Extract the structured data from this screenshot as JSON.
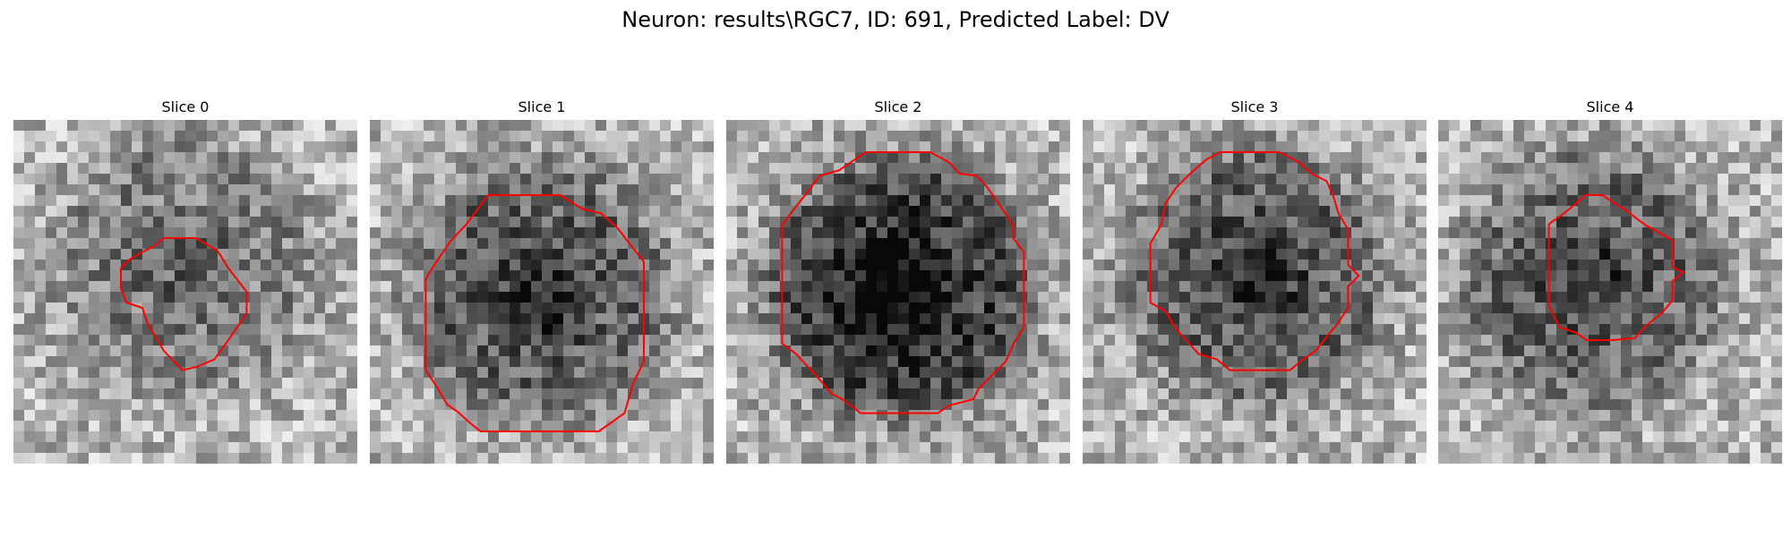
{
  "figure": {
    "title": "Neuron: results\\RGC7, ID: 691, Predicted Label: DV"
  },
  "colors": {
    "contour": "#ff0000",
    "background": "#ffffff"
  },
  "slices": [
    {
      "title": "Slice 0",
      "grid_size": 32,
      "cell_center": [
        15.8,
        13.5
      ],
      "cell_darkness": 0.35,
      "contour": [
        [
          14,
          11
        ],
        [
          17,
          11
        ],
        [
          19,
          12.2
        ],
        [
          20,
          13.8
        ],
        [
          21.7,
          16
        ],
        [
          21.7,
          18
        ],
        [
          20,
          20.5
        ],
        [
          18.7,
          22.3
        ],
        [
          17,
          23
        ],
        [
          15.7,
          23.3
        ],
        [
          14,
          21.5
        ],
        [
          12.5,
          19
        ],
        [
          12,
          17.5
        ],
        [
          10.5,
          17
        ],
        [
          10,
          15.7
        ],
        [
          10,
          13.8
        ],
        [
          10.8,
          13
        ],
        [
          12,
          12.3
        ],
        [
          13,
          11.8
        ]
      ]
    },
    {
      "title": "Slice 1",
      "grid_size": 32,
      "cell_center": [
        15.8,
        16.0
      ],
      "cell_darkness": 0.55,
      "contour": [
        [
          11,
          7
        ],
        [
          17.7,
          7
        ],
        [
          19.8,
          8.3
        ],
        [
          21.5,
          8.7
        ],
        [
          23,
          10
        ],
        [
          24.3,
          11.7
        ],
        [
          25.5,
          13.2
        ],
        [
          25.5,
          22.5
        ],
        [
          24.5,
          24.5
        ],
        [
          23.7,
          27.3
        ],
        [
          22.3,
          28.3
        ],
        [
          21.3,
          29
        ],
        [
          10.3,
          29
        ],
        [
          9.3,
          28.2
        ],
        [
          8.2,
          27.2
        ],
        [
          7.2,
          26.5
        ],
        [
          6.2,
          24.8
        ],
        [
          5.2,
          23.3
        ],
        [
          5.2,
          14.8
        ],
        [
          6,
          13.5
        ],
        [
          7.5,
          11.3
        ],
        [
          9,
          9.7
        ]
      ]
    },
    {
      "title": "Slice 2",
      "grid_size": 32,
      "cell_center": [
        16.0,
        15.7
      ],
      "cell_darkness": 0.75,
      "contour": [
        [
          13,
          3
        ],
        [
          19,
          3
        ],
        [
          20.8,
          4
        ],
        [
          21.7,
          5
        ],
        [
          23.3,
          5.2
        ],
        [
          24.3,
          6.3
        ],
        [
          25.5,
          8
        ],
        [
          26.7,
          9.8
        ],
        [
          26.7,
          11
        ],
        [
          27.7,
          12.3
        ],
        [
          27.7,
          19.3
        ],
        [
          26.8,
          20.7
        ],
        [
          26,
          22.5
        ],
        [
          24.5,
          24
        ],
        [
          23.5,
          25
        ],
        [
          23,
          26
        ],
        [
          20.7,
          26.6
        ],
        [
          19.7,
          27.3
        ],
        [
          12.5,
          27.3
        ],
        [
          10.8,
          26
        ],
        [
          9.8,
          25.5
        ],
        [
          8.8,
          24.3
        ],
        [
          7.8,
          23.2
        ],
        [
          6.5,
          21.8
        ],
        [
          5.2,
          20.8
        ],
        [
          5.2,
          9.8
        ],
        [
          6.3,
          8.3
        ],
        [
          7.5,
          6.8
        ],
        [
          8.7,
          5.2
        ],
        [
          10.5,
          4.7
        ],
        [
          11.8,
          3.8
        ]
      ]
    },
    {
      "title": "Slice 3",
      "grid_size": 32,
      "cell_center": [
        16.2,
        14.5
      ],
      "cell_darkness": 0.55,
      "contour": [
        [
          12.8,
          3
        ],
        [
          18.3,
          3
        ],
        [
          20.2,
          4
        ],
        [
          21.3,
          5
        ],
        [
          22.7,
          5.7
        ],
        [
          23.3,
          7
        ],
        [
          23.8,
          8.7
        ],
        [
          24.7,
          10.2
        ],
        [
          24.7,
          13.5
        ],
        [
          25.7,
          14.5
        ],
        [
          24.7,
          15.5
        ],
        [
          24.7,
          17.5
        ],
        [
          23.7,
          19
        ],
        [
          22.7,
          20.2
        ],
        [
          21.7,
          21.5
        ],
        [
          20.5,
          22.3
        ],
        [
          19.3,
          23.3
        ],
        [
          13.7,
          23.3
        ],
        [
          12.5,
          22.3
        ],
        [
          10.8,
          21.8
        ],
        [
          9.8,
          20.7
        ],
        [
          8.7,
          19.5
        ],
        [
          7.7,
          17.8
        ],
        [
          6.3,
          17
        ],
        [
          6.3,
          11.5
        ],
        [
          7.3,
          9.8
        ],
        [
          7.7,
          7.8
        ],
        [
          8.7,
          6.3
        ],
        [
          10,
          5
        ],
        [
          11.5,
          3.7
        ]
      ]
    },
    {
      "title": "Slice 4",
      "grid_size": 32,
      "cell_center": [
        14.2,
        15.0
      ],
      "cell_darkness": 0.5,
      "contour": [
        [
          13.7,
          7
        ],
        [
          15.3,
          7
        ],
        [
          16.3,
          7.7
        ],
        [
          17.3,
          8.3
        ],
        [
          18.5,
          9.2
        ],
        [
          19.3,
          9.8
        ],
        [
          21.8,
          11.2
        ],
        [
          21.8,
          13.7
        ],
        [
          22.8,
          14.2
        ],
        [
          21.8,
          15
        ],
        [
          21.8,
          16.8
        ],
        [
          20.8,
          18
        ],
        [
          19.3,
          19.2
        ],
        [
          18.3,
          20.3
        ],
        [
          16.3,
          20.5
        ],
        [
          13.8,
          20.5
        ],
        [
          12.8,
          19.8
        ],
        [
          11.3,
          19.3
        ],
        [
          10.3,
          17.3
        ],
        [
          10.3,
          9.7
        ],
        [
          11.7,
          8.7
        ],
        [
          12.8,
          7.8
        ]
      ]
    }
  ]
}
